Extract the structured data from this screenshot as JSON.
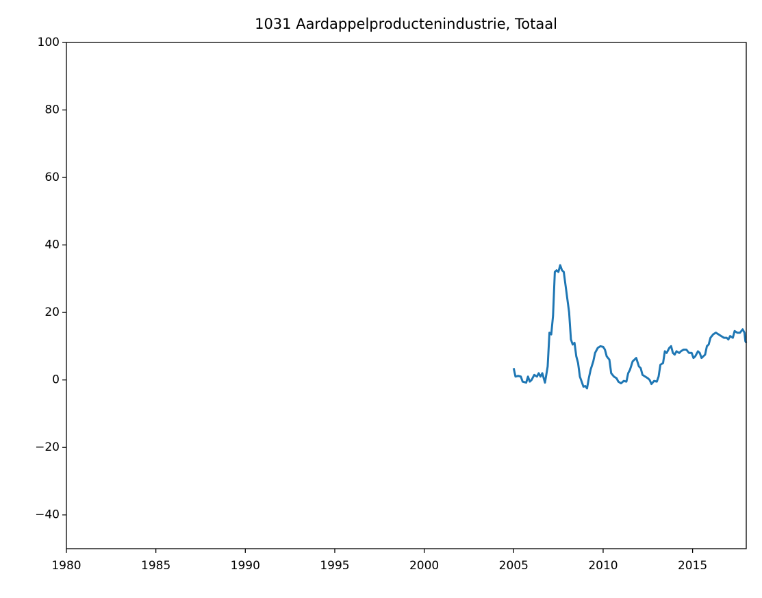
{
  "chart_data": {
    "type": "line",
    "title": "1031 Aardappelproductenindustrie, Totaal",
    "x": [
      2005.0,
      2005.1,
      2005.25,
      2005.4,
      2005.5,
      2005.7,
      2005.8,
      2005.9,
      2006.0,
      2006.15,
      2006.3,
      2006.4,
      2006.5,
      2006.6,
      2006.75,
      2006.9,
      2007.0,
      2007.1,
      2007.2,
      2007.3,
      2007.4,
      2007.5,
      2007.6,
      2007.7,
      2007.8,
      2007.9,
      2008.0,
      2008.1,
      2008.2,
      2008.3,
      2008.4,
      2008.5,
      2008.6,
      2008.7,
      2008.8,
      2008.9,
      2009.0,
      2009.1,
      2009.2,
      2009.3,
      2009.45,
      2009.55,
      2009.7,
      2009.85,
      2010.0,
      2010.1,
      2010.2,
      2010.35,
      2010.45,
      2010.6,
      2010.75,
      2010.85,
      2011.0,
      2011.15,
      2011.3,
      2011.4,
      2011.5,
      2011.65,
      2011.75,
      2011.85,
      2012.0,
      2012.1,
      2012.2,
      2012.35,
      2012.5,
      2012.6,
      2012.7,
      2012.85,
      2013.0,
      2013.1,
      2013.2,
      2013.35,
      2013.45,
      2013.55,
      2013.7,
      2013.8,
      2013.9,
      2014.0,
      2014.1,
      2014.25,
      2014.35,
      2014.5,
      2014.65,
      2014.8,
      2014.95,
      2015.05,
      2015.15,
      2015.3,
      2015.4,
      2015.5,
      2015.6,
      2015.7,
      2015.8,
      2015.9,
      2016.0,
      2016.15,
      2016.3,
      2016.45,
      2016.6,
      2016.75,
      2016.9,
      2017.0,
      2017.1,
      2017.25,
      2017.35,
      2017.5,
      2017.65,
      2017.8,
      2017.9,
      2017.95,
      2018.0
    ],
    "series": [
      {
        "color": "#1f77b4",
        "values": [
          3.5,
          1,
          1.2,
          1,
          -0.5,
          -0.8,
          1,
          -0.5,
          0,
          1.5,
          1,
          2,
          1,
          2,
          -0.8,
          4,
          14,
          13.5,
          19,
          32,
          32.5,
          32,
          34,
          32.5,
          32,
          28,
          24,
          20,
          12,
          10.5,
          11,
          7,
          5,
          1,
          -0.5,
          -2,
          -1.8,
          -2.5,
          0.5,
          3,
          5.5,
          8,
          9.5,
          10,
          9.8,
          9,
          7,
          6,
          2,
          1,
          0.5,
          -0.5,
          -1,
          -0.3,
          -0.5,
          2,
          3,
          5.5,
          6,
          6.5,
          4,
          3.5,
          1.5,
          1,
          0.5,
          0,
          -1.2,
          -0.3,
          -0.5,
          1,
          4.5,
          5,
          8.5,
          8,
          9.5,
          10,
          8,
          7.5,
          8.5,
          8,
          8.5,
          9,
          9,
          8,
          8,
          6.5,
          7,
          8.5,
          8,
          6.5,
          7,
          7.5,
          10,
          10.5,
          12.5,
          13.5,
          14,
          13.5,
          13,
          12.5,
          12.5,
          12,
          13,
          12.5,
          14.5,
          14,
          14,
          15,
          14,
          11.5,
          11
        ]
      }
    ],
    "xlim": [
      1980,
      2018
    ],
    "xticks": [
      1980,
      1985,
      1990,
      1995,
      2000,
      2005,
      2010,
      2015
    ],
    "ylim": [
      -50,
      100
    ],
    "yticks": [
      {
        "value": -40,
        "label": "−40"
      },
      {
        "value": -20,
        "label": "−20"
      },
      0,
      20,
      40,
      60,
      80,
      100
    ]
  }
}
